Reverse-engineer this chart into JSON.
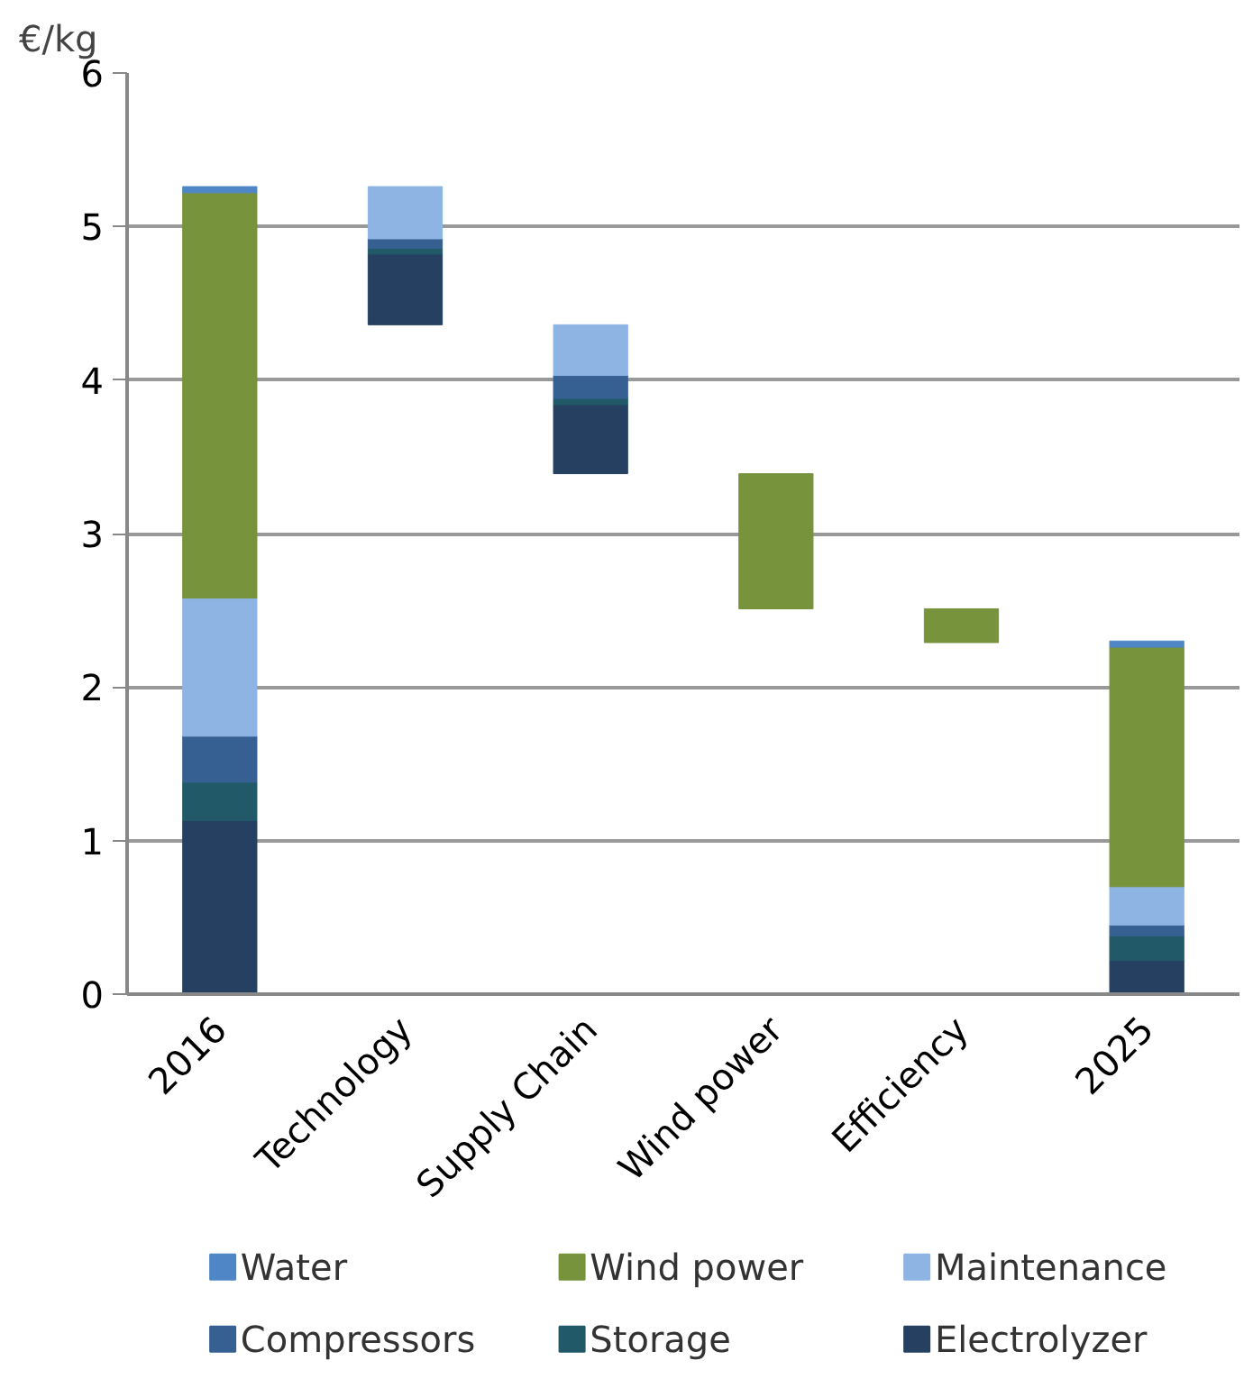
{
  "chart_data": {
    "type": "bar",
    "ylabel": "€/kg",
    "categories": [
      "2016",
      "Technology",
      "Supply Chain",
      "Wind power",
      "Efficiency",
      "2025"
    ],
    "series": [
      {
        "name": "Electrolyzer",
        "color": "#254061",
        "values": [
          1.13,
          0.46,
          0.45,
          null,
          null,
          0.22
        ],
        "base": [
          0,
          4.36,
          3.39,
          null,
          null,
          0
        ]
      },
      {
        "name": "Storage",
        "color": "#215968",
        "values": [
          0.25,
          0.04,
          0.04,
          null,
          null,
          0.16
        ],
        "base": [
          1.13,
          4.82,
          3.84,
          null,
          null,
          0.22
        ]
      },
      {
        "name": "Compressors",
        "color": "#376092",
        "values": [
          0.3,
          0.06,
          0.15,
          null,
          null,
          0.07
        ],
        "base": [
          1.38,
          4.86,
          3.88,
          null,
          null,
          0.38
        ]
      },
      {
        "name": "Maintenance",
        "color": "#8eb4e3",
        "values": [
          0.9,
          0.34,
          0.33,
          null,
          null,
          0.25
        ],
        "base": [
          1.68,
          4.92,
          4.03,
          null,
          null,
          0.45
        ]
      },
      {
        "name": "Wind power",
        "color": "#77933c",
        "values": [
          2.64,
          null,
          null,
          0.88,
          0.22,
          1.56
        ],
        "base": [
          2.58,
          null,
          null,
          2.51,
          2.29,
          0.7
        ]
      },
      {
        "name": "Water",
        "color": "#4f86c6",
        "values": [
          0.04,
          null,
          null,
          null,
          null,
          0.04
        ],
        "base": [
          5.22,
          null,
          null,
          null,
          null,
          2.26
        ]
      }
    ],
    "ylim": [
      0,
      6
    ],
    "yticks": [
      0,
      1,
      2,
      3,
      4,
      5,
      6
    ],
    "grid": "y",
    "legend": "bottom"
  }
}
